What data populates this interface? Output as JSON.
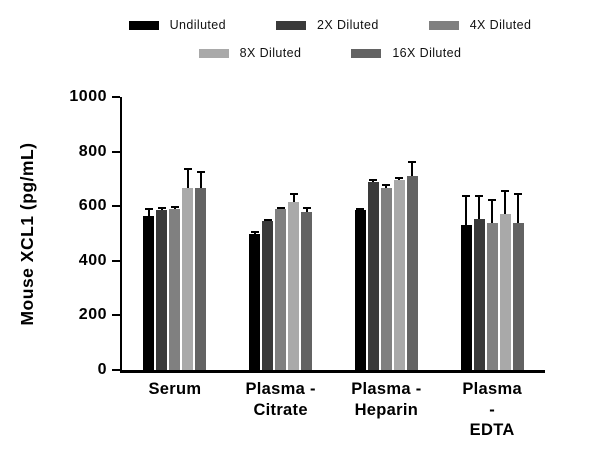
{
  "chart_data": {
    "type": "bar",
    "title": "",
    "xlabel": "",
    "ylabel": "Mouse XCL1 (pg/mL)",
    "ylim": [
      0,
      1000
    ],
    "yticks": [
      0,
      200,
      400,
      600,
      800,
      1000
    ],
    "grid": false,
    "legend_position": "top",
    "legend_rows": [
      [
        0,
        1,
        2
      ],
      [
        3,
        4
      ]
    ],
    "categories": [
      "Serum",
      "Plasma -\nCitrate",
      "Plasma -\nHeparin",
      "Plasma -\nEDTA"
    ],
    "series": [
      {
        "name": "Undiluted",
        "color": "#000000",
        "values": [
          565,
          500,
          585,
          530
        ],
        "errors": [
          30,
          10,
          8,
          110
        ]
      },
      {
        "name": "2X Diluted",
        "color": "#3a3a3a",
        "values": [
          585,
          545,
          690,
          555
        ],
        "errors": [
          12,
          8,
          10,
          85
        ]
      },
      {
        "name": "4X Diluted",
        "color": "#808080",
        "values": [
          590,
          588,
          665,
          540
        ],
        "errors": [
          10,
          10,
          18,
          85
        ]
      },
      {
        "name": "8X Diluted",
        "color": "#a9a9a9",
        "values": [
          665,
          615,
          695,
          570
        ],
        "errors": [
          75,
          35,
          12,
          90
        ]
      },
      {
        "name": "16X Diluted",
        "color": "#636363",
        "values": [
          665,
          580,
          710,
          540
        ],
        "errors": [
          65,
          18,
          55,
          110
        ]
      }
    ]
  }
}
